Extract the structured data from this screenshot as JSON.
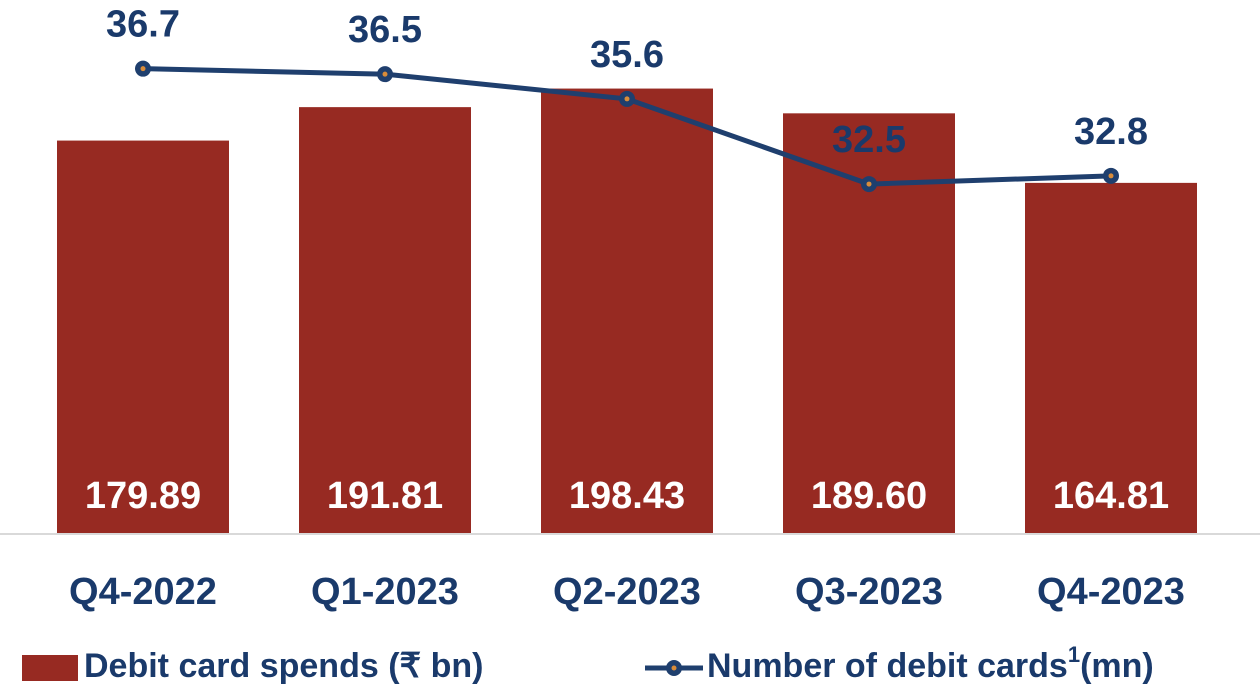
{
  "chart_data": {
    "type": "bar_line",
    "categories": [
      "Q4-2022",
      "Q1-2023",
      "Q2-2023",
      "Q3-2023",
      "Q4-2023"
    ],
    "series": [
      {
        "name": "Debit card spends (₹ bn)",
        "type": "bar",
        "color": "#972a22",
        "values": [
          179.89,
          191.81,
          198.43,
          189.6,
          164.81
        ],
        "value_labels": [
          "179.89",
          "191.81",
          "198.43",
          "189.60",
          "164.81"
        ]
      },
      {
        "name": "Number of debit cards",
        "footnote_marker": "1",
        "unit_label": "(mn)",
        "type": "line",
        "axis": "y2",
        "color": "#1f3f6e",
        "values": [
          36.7,
          36.5,
          35.6,
          32.5,
          32.8
        ]
      }
    ],
    "ylim": [
      40,
      230
    ],
    "y2lim": [
      19.8,
      39.2
    ],
    "grid": false,
    "legend": "bottom"
  }
}
